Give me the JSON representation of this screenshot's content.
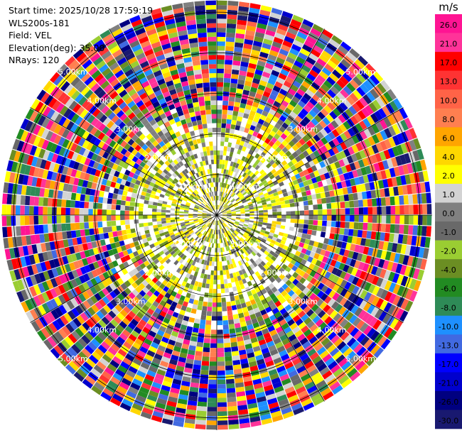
{
  "info": {
    "start_time": "Start time: 2025/10/28 17:59:19",
    "instrument": "WLS200s-181",
    "field": "Field: VEL",
    "elevation": "Elevation(deg): 35.00",
    "nrays": "NRays: 120"
  },
  "chart_data": {
    "type": "heatmap",
    "projection": "polar-ppi",
    "field": "VEL",
    "nrays": 120,
    "range_rings_km": [
      1,
      2,
      3,
      4,
      5
    ],
    "ring_labels": [
      "1.00km",
      "2.00km",
      "3.00km",
      "4.00km",
      "5.00km"
    ],
    "max_range_km": 5.3,
    "radial_spokes": 12,
    "colorbar": {
      "unit": "m/s",
      "ticks": [
        "26.0",
        "21.0",
        "17.0",
        "13.0",
        "10.0",
        "8.0",
        "6.0",
        "4.0",
        "2.0",
        "1.0",
        "0.0",
        "-1.0",
        "-2.0",
        "-4.0",
        "-6.0",
        "-8.0",
        "-10.0",
        "-13.0",
        "-17.0",
        "-21.0",
        "-26.0",
        "-30.0"
      ],
      "colors": [
        "#ff1493",
        "#ff3399",
        "#ff0000",
        "#ff3333",
        "#ff6347",
        "#ff7f50",
        "#ffa500",
        "#ffd700",
        "#ffff00",
        "#d3d3d3",
        "#808080",
        "#696969",
        "#9acd32",
        "#6b8e23",
        "#228b22",
        "#2e8b57",
        "#1e90ff",
        "#4169e1",
        "#0000ff",
        "#0000cd",
        "#000080",
        "#191970"
      ]
    }
  }
}
